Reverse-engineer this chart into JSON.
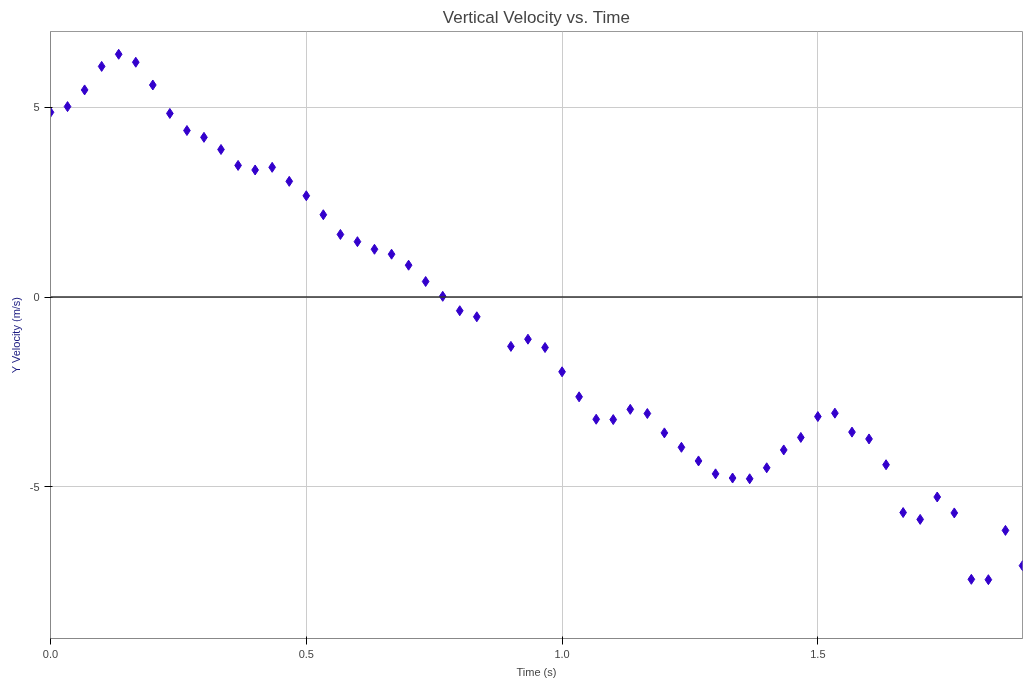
{
  "chart_data": {
    "type": "scatter",
    "title": "Vertical Velocity vs. Time",
    "xlabel": "Time (s)",
    "ylabel": "Y Velocity (m/s)",
    "x": [
      0,
      0.0333,
      0.0667,
      0.1,
      0.1333,
      0.1667,
      0.2,
      0.2333,
      0.2667,
      0.3,
      0.3333,
      0.3667,
      0.4,
      0.4333,
      0.4667,
      0.5,
      0.5333,
      0.5667,
      0.6,
      0.6333,
      0.6667,
      0.7,
      0.7333,
      0.7667,
      0.8,
      0.8333,
      0.8667,
      0.9,
      0.9333,
      0.9667,
      1.0,
      1.0333,
      1.0667,
      1.1,
      1.1333,
      1.1667,
      1.2,
      1.2333,
      1.2667,
      1.3,
      1.3333,
      1.3667,
      1.4,
      1.4333,
      1.4667,
      1.5,
      1.5333,
      1.5667,
      1.6,
      1.6333,
      1.6667,
      1.7,
      1.7333,
      1.7667,
      1.8,
      1.8333,
      1.8667,
      1.9
    ],
    "series": [
      {
        "color": "#3300cc",
        "values": [
          4.87,
          5.02,
          5.46,
          6.08,
          6.4,
          6.19,
          5.59,
          4.84,
          4.39,
          4.21,
          3.89,
          3.47,
          3.35,
          3.42,
          3.05,
          2.67,
          2.17,
          1.65,
          1.46,
          1.26,
          1.13,
          0.84,
          0.41,
          0.02,
          -0.36,
          -0.52,
          null,
          -1.3,
          -1.11,
          -1.33,
          -1.97,
          -2.63,
          -3.22,
          -3.23,
          -2.96,
          -3.07,
          -3.58,
          -3.96,
          -4.32,
          -4.66,
          -4.77,
          -4.79,
          -4.5,
          -4.03,
          -3.7,
          -3.15,
          -3.06,
          -3.56,
          -3.74,
          -4.42,
          -5.68,
          -5.86,
          -5.27,
          -5.69,
          -7.44,
          -7.45,
          -6.15,
          -7.08
        ]
      }
    ],
    "marker": "diamond",
    "xlim": [
      0,
      1.9
    ],
    "ylim": [
      -9,
      7
    ],
    "xticks": [
      {
        "value": 0,
        "label": "0.0"
      },
      0.5,
      {
        "value": 1,
        "label": "1.0"
      },
      1.5
    ],
    "yticks": [
      -5,
      0,
      5
    ],
    "grid": true,
    "ref_lines": [
      {
        "axis": "y",
        "value": 0,
        "color": "#333333"
      }
    ]
  }
}
